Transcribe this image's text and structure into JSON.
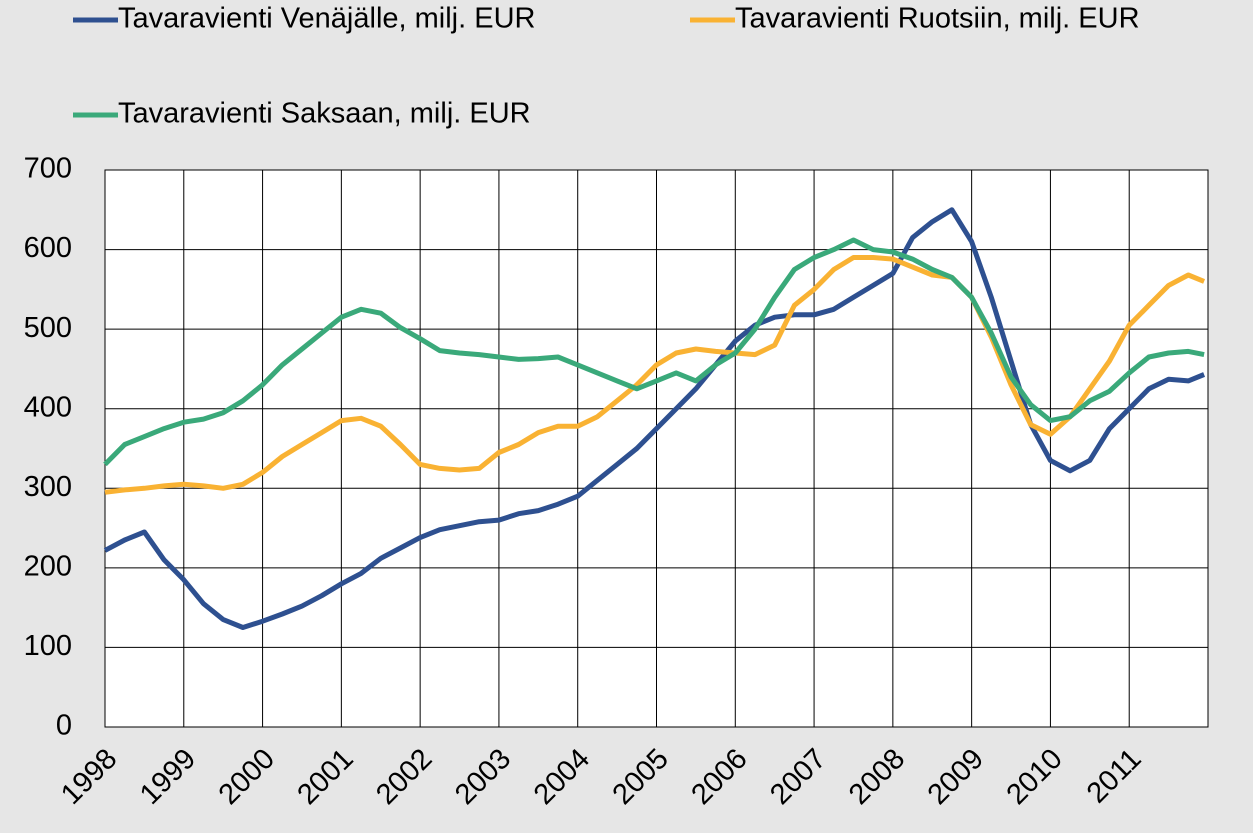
{
  "chart_data": {
    "type": "line",
    "x": [
      1998,
      1998.25,
      1998.5,
      1998.75,
      1999,
      1999.25,
      1999.5,
      1999.75,
      2000,
      2000.25,
      2000.5,
      2000.75,
      2001,
      2001.25,
      2001.5,
      2001.75,
      2002,
      2002.25,
      2002.5,
      2002.75,
      2003,
      2003.25,
      2003.5,
      2003.75,
      2004,
      2004.25,
      2004.5,
      2004.75,
      2005,
      2005.25,
      2005.5,
      2005.75,
      2006,
      2006.25,
      2006.5,
      2006.75,
      2007,
      2007.25,
      2007.5,
      2007.75,
      2008,
      2008.25,
      2008.5,
      2008.75,
      2009,
      2009.25,
      2009.5,
      2009.75,
      2010,
      2010.25,
      2010.5,
      2010.75,
      2011,
      2011.25,
      2011.5,
      2011.75,
      2011.95
    ],
    "series": [
      {
        "name": "Tavaravienti Venäjälle, milj. EUR",
        "color": "#2e5090",
        "values": [
          222,
          235,
          245,
          210,
          185,
          155,
          135,
          125,
          133,
          142,
          152,
          165,
          180,
          193,
          212,
          225,
          238,
          248,
          253,
          258,
          260,
          268,
          272,
          280,
          290,
          310,
          330,
          350,
          375,
          400,
          425,
          455,
          485,
          505,
          515,
          518,
          518,
          525,
          540,
          555,
          570,
          615,
          635,
          650,
          610,
          540,
          460,
          380,
          335,
          322,
          335,
          375,
          400,
          425,
          437,
          435,
          443
        ]
      },
      {
        "name": "Tavaravienti Ruotsiin, milj. EUR",
        "color": "#f9b233",
        "values": [
          295,
          298,
          300,
          303,
          305,
          303,
          300,
          305,
          320,
          340,
          355,
          370,
          385,
          388,
          378,
          355,
          330,
          325,
          323,
          325,
          345,
          355,
          370,
          378,
          378,
          390,
          410,
          430,
          455,
          470,
          475,
          472,
          470,
          468,
          480,
          530,
          550,
          575,
          590,
          590,
          588,
          578,
          568,
          565,
          540,
          490,
          430,
          380,
          368,
          390,
          425,
          460,
          505,
          530,
          555,
          568,
          560
        ]
      },
      {
        "name": "Tavaravienti Saksaan, milj. EUR",
        "color": "#3aa97a",
        "values": [
          330,
          355,
          365,
          375,
          383,
          387,
          395,
          410,
          430,
          455,
          475,
          495,
          515,
          525,
          520,
          502,
          488,
          473,
          470,
          468,
          465,
          462,
          463,
          465,
          455,
          445,
          435,
          425,
          435,
          445,
          435,
          455,
          470,
          500,
          540,
          575,
          590,
          600,
          612,
          600,
          597,
          588,
          575,
          565,
          540,
          495,
          440,
          405,
          385,
          390,
          410,
          422,
          445,
          465,
          470,
          472,
          468
        ]
      }
    ],
    "xlim": [
      1998,
      2012
    ],
    "xticks": [
      1998,
      1999,
      2000,
      2001,
      2002,
      2003,
      2004,
      2005,
      2006,
      2007,
      2008,
      2009,
      2010,
      2011
    ],
    "ylim": [
      0,
      700
    ],
    "yticks": [
      0,
      100,
      200,
      300,
      400,
      500,
      600,
      700
    ],
    "grid": true,
    "legend": "top"
  }
}
